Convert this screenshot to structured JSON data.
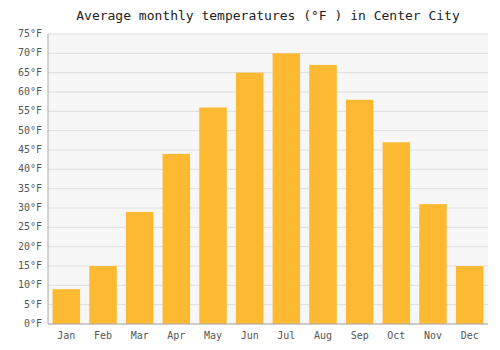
{
  "chart_data": {
    "type": "bar",
    "title": "Average monthly temperatures (°F ) in Center City",
    "categories": [
      "Jan",
      "Feb",
      "Mar",
      "Apr",
      "May",
      "Jun",
      "Jul",
      "Aug",
      "Sep",
      "Oct",
      "Nov",
      "Dec"
    ],
    "values": [
      9,
      15,
      29,
      44,
      56,
      65,
      70,
      67,
      58,
      47,
      31,
      15
    ],
    "color": "#FDB931",
    "ylim": [
      0,
      75
    ],
    "yticks": [
      {
        "value": 0,
        "label": "0°F"
      },
      {
        "value": 5,
        "label": "5°F"
      },
      {
        "value": 10,
        "label": "10°F"
      },
      {
        "value": 15,
        "label": "15°F"
      },
      {
        "value": 20,
        "label": "20°F"
      },
      {
        "value": 25,
        "label": "25°F"
      },
      {
        "value": 30,
        "label": "30°F"
      },
      {
        "value": 35,
        "label": "35°F"
      },
      {
        "value": 40,
        "label": "40°F"
      },
      {
        "value": 45,
        "label": "45°F"
      },
      {
        "value": 50,
        "label": "50°F"
      },
      {
        "value": 55,
        "label": "55°F"
      },
      {
        "value": 60,
        "label": "60°F"
      },
      {
        "value": 65,
        "label": "65°F"
      },
      {
        "value": 70,
        "label": "70°F"
      },
      {
        "value": 75,
        "label": "75°F"
      }
    ],
    "grid": true
  }
}
